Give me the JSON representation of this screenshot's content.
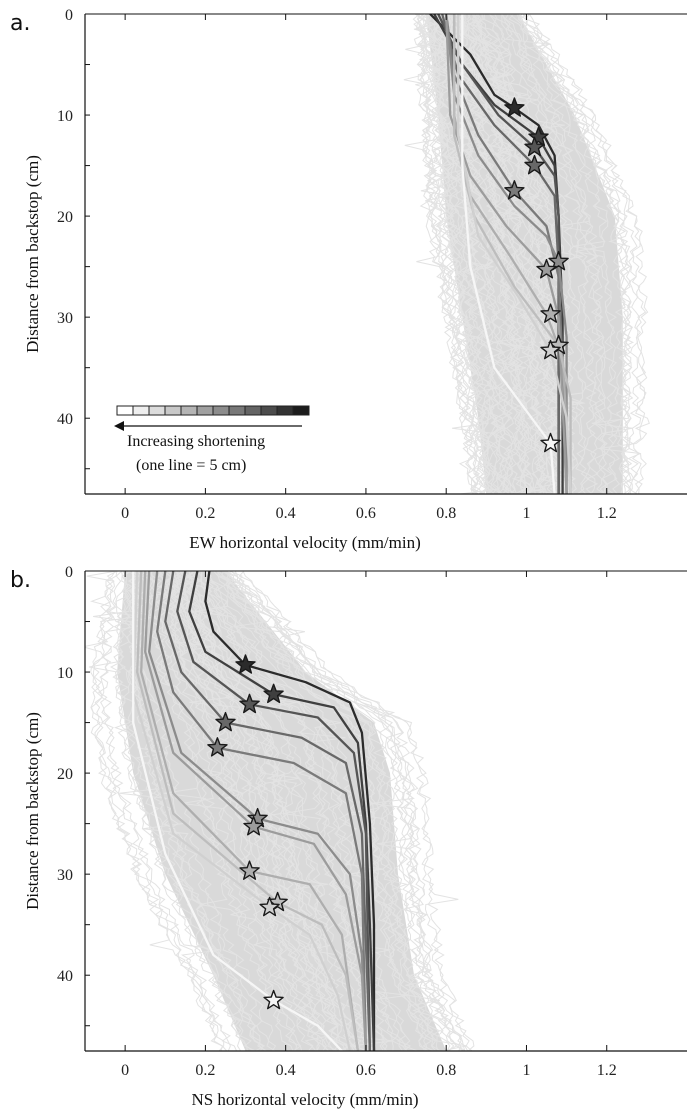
{
  "chart_data": [
    {
      "type": "line",
      "panel_label": "a.",
      "xlabel": "EW horizontal velocity (mm/min)",
      "ylabel": "Distance from backstop (cm)",
      "xlim": [
        -0.1,
        1.4
      ],
      "ylim": [
        0,
        47.5
      ],
      "y_inverted": true,
      "x_ticks": [
        0,
        0.2,
        0.4,
        0.6,
        0.8,
        1,
        1.2
      ],
      "x_tick_labels": [
        "0",
        "0.2",
        "0.4",
        "0.6",
        "0.8",
        "1",
        "1.2"
      ],
      "y_ticks": [
        0,
        10,
        20,
        30,
        40
      ],
      "y_tick_labels": [
        "0",
        "10",
        "20",
        "30",
        "40"
      ],
      "background_band": {
        "color": "#d9d9d9",
        "left_x": [
          [
            0,
            0.75
          ],
          [
            10,
            0.78
          ],
          [
            20,
            0.8
          ],
          [
            30,
            0.84
          ],
          [
            40,
            0.88
          ],
          [
            47.5,
            0.9
          ]
        ],
        "right_x": [
          [
            0,
            0.98
          ],
          [
            10,
            1.12
          ],
          [
            20,
            1.22
          ],
          [
            30,
            1.24
          ],
          [
            40,
            1.24
          ],
          [
            47.5,
            1.24
          ]
        ]
      },
      "series": [
        {
          "color": "#2b2b2b",
          "points": [
            [
              0.76,
              0
            ],
            [
              0.86,
              4
            ],
            [
              0.92,
              8
            ],
            [
              0.97,
              9.3
            ],
            [
              1.03,
              11
            ],
            [
              1.07,
              14
            ],
            [
              1.08,
              20
            ],
            [
              1.08,
              30
            ],
            [
              1.08,
              40
            ],
            [
              1.08,
              47.5
            ]
          ],
          "star": [
            0.97,
            9.3
          ]
        },
        {
          "color": "#3f3f3f",
          "points": [
            [
              0.77,
              0
            ],
            [
              0.84,
              5
            ],
            [
              0.92,
              9
            ],
            [
              1.03,
              12.2
            ],
            [
              1.07,
              15
            ],
            [
              1.08,
              20
            ],
            [
              1.09,
              30
            ],
            [
              1.09,
              40
            ],
            [
              1.09,
              47.5
            ]
          ],
          "star": [
            1.03,
            12.2
          ]
        },
        {
          "color": "#555555",
          "points": [
            [
              0.78,
              0
            ],
            [
              0.84,
              5
            ],
            [
              0.93,
              10
            ],
            [
              1.02,
              13.2
            ],
            [
              1.07,
              16
            ],
            [
              1.08,
              20
            ],
            [
              1.08,
              30
            ],
            [
              1.08,
              40
            ],
            [
              1.08,
              47.5
            ]
          ],
          "star": [
            1.02,
            13.2
          ]
        },
        {
          "color": "#686868",
          "points": [
            [
              0.79,
              0
            ],
            [
              0.83,
              6
            ],
            [
              0.92,
              11
            ],
            [
              1.02,
              15
            ],
            [
              1.07,
              18
            ],
            [
              1.08,
              25
            ],
            [
              1.08,
              35
            ],
            [
              1.08,
              47.5
            ]
          ],
          "star": [
            1.02,
            15
          ]
        },
        {
          "color": "#7a7a7a",
          "points": [
            [
              0.8,
              0
            ],
            [
              0.82,
              6
            ],
            [
              0.88,
              12
            ],
            [
              0.97,
              17.5
            ],
            [
              1.05,
              21
            ],
            [
              1.08,
              26
            ],
            [
              1.09,
              35
            ],
            [
              1.1,
              47.5
            ]
          ],
          "star": [
            0.97,
            17.5
          ]
        },
        {
          "color": "#8c8c8c",
          "points": [
            [
              0.8,
              0
            ],
            [
              0.82,
              8
            ],
            [
              0.88,
              14
            ],
            [
              0.97,
              19
            ],
            [
              1.05,
              22
            ],
            [
              1.08,
              24.5
            ],
            [
              1.1,
              32
            ],
            [
              1.1,
              47.5
            ]
          ],
          "star": [
            1.08,
            24.5
          ]
        },
        {
          "color": "#9c9c9c",
          "points": [
            [
              0.8,
              0
            ],
            [
              0.81,
              10
            ],
            [
              0.86,
              16
            ],
            [
              0.95,
              21
            ],
            [
              1.05,
              25.3
            ],
            [
              1.08,
              30
            ],
            [
              1.1,
              47.5
            ]
          ],
          "star": [
            1.05,
            25.3
          ]
        },
        {
          "color": "#aeaeae",
          "points": [
            [
              0.82,
              0
            ],
            [
              0.82,
              10
            ],
            [
              0.86,
              18
            ],
            [
              0.96,
              24
            ],
            [
              1.05,
              29.7
            ],
            [
              1.09,
              34
            ],
            [
              1.11,
              47.5
            ]
          ],
          "star": [
            1.06,
            29.7
          ]
        },
        {
          "color": "#bdbdbd",
          "points": [
            [
              0.82,
              0
            ],
            [
              0.82,
              12
            ],
            [
              0.87,
              20
            ],
            [
              0.97,
              27
            ],
            [
              1.08,
              32.8
            ],
            [
              1.11,
              38
            ],
            [
              1.11,
              47.5
            ]
          ],
          "star": [
            1.08,
            32.8
          ]
        },
        {
          "color": "#d0d0d0",
          "points": [
            [
              0.83,
              0
            ],
            [
              0.83,
              12
            ],
            [
              0.88,
              22
            ],
            [
              0.98,
              28
            ],
            [
              1.06,
              33.3
            ],
            [
              1.1,
              40
            ],
            [
              1.11,
              47.5
            ]
          ],
          "star": [
            1.06,
            33.3
          ]
        },
        {
          "color": "#f6f6f6",
          "points": [
            [
              0.84,
              0
            ],
            [
              0.84,
              15
            ],
            [
              0.86,
              25
            ],
            [
              0.92,
              35
            ],
            [
              1.06,
              42.5
            ],
            [
              1.07,
              47.5
            ]
          ],
          "star": [
            1.06,
            42.5
          ]
        }
      ],
      "legend": {
        "colors": [
          "#ffffff",
          "#eeeeee",
          "#dcdcdc",
          "#c8c8c8",
          "#b4b4b4",
          "#a0a0a0",
          "#8c8c8c",
          "#787878",
          "#646464",
          "#4c4c4c",
          "#333333",
          "#1c1c1c"
        ],
        "label_line1": "Increasing shortening",
        "label_line2": "(one line = 5 cm)"
      }
    },
    {
      "type": "line",
      "panel_label": "b.",
      "xlabel": "NS horizontal velocity (mm/min)",
      "ylabel": "Distance from backstop (cm)",
      "xlim": [
        -0.1,
        1.4
      ],
      "ylim": [
        0,
        47.5
      ],
      "y_inverted": true,
      "x_ticks": [
        0,
        0.2,
        0.4,
        0.6,
        0.8,
        1,
        1.2
      ],
      "x_tick_labels": [
        "0",
        "0.2",
        "0.4",
        "0.6",
        "0.8",
        "1",
        "1.2"
      ],
      "y_ticks": [
        0,
        10,
        20,
        30,
        40
      ],
      "y_tick_labels": [
        "0",
        "10",
        "20",
        "30",
        "40"
      ],
      "background_band": {
        "color": "#d9d9d9",
        "left_x": [
          [
            0,
            0.0
          ],
          [
            10,
            -0.02
          ],
          [
            20,
            0.02
          ],
          [
            30,
            0.1
          ],
          [
            40,
            0.22
          ],
          [
            47.5,
            0.3
          ]
        ],
        "right_x": [
          [
            0,
            0.25
          ],
          [
            10,
            0.45
          ],
          [
            15,
            0.62
          ],
          [
            20,
            0.66
          ],
          [
            30,
            0.68
          ],
          [
            40,
            0.72
          ],
          [
            47.5,
            0.8
          ]
        ]
      },
      "series": [
        {
          "color": "#2b2b2b",
          "points": [
            [
              0.21,
              0
            ],
            [
              0.2,
              3
            ],
            [
              0.22,
              6
            ],
            [
              0.3,
              9.3
            ],
            [
              0.45,
              11
            ],
            [
              0.56,
              13
            ],
            [
              0.59,
              16
            ],
            [
              0.61,
              25
            ],
            [
              0.62,
              35
            ],
            [
              0.62,
              47.5
            ]
          ],
          "star": [
            0.3,
            9.3
          ]
        },
        {
          "color": "#3f3f3f",
          "points": [
            [
              0.18,
              0
            ],
            [
              0.16,
              4
            ],
            [
              0.2,
              8
            ],
            [
              0.37,
              12.2
            ],
            [
              0.52,
              13.5
            ],
            [
              0.58,
              17
            ],
            [
              0.6,
              25
            ],
            [
              0.61,
              35
            ],
            [
              0.62,
              47.5
            ]
          ],
          "star": [
            0.37,
            12.2
          ]
        },
        {
          "color": "#555555",
          "points": [
            [
              0.15,
              0
            ],
            [
              0.13,
              4
            ],
            [
              0.17,
              9
            ],
            [
              0.31,
              13.2
            ],
            [
              0.48,
              14.5
            ],
            [
              0.57,
              18
            ],
            [
              0.6,
              26
            ],
            [
              0.61,
              47.5
            ]
          ],
          "star": [
            0.31,
            13.2
          ]
        },
        {
          "color": "#686868",
          "points": [
            [
              0.12,
              0
            ],
            [
              0.1,
              5
            ],
            [
              0.14,
              10
            ],
            [
              0.25,
              15
            ],
            [
              0.44,
              16.5
            ],
            [
              0.55,
              19
            ],
            [
              0.59,
              26
            ],
            [
              0.61,
              47.5
            ]
          ],
          "star": [
            0.25,
            15
          ]
        },
        {
          "color": "#7a7a7a",
          "points": [
            [
              0.1,
              0
            ],
            [
              0.08,
              6
            ],
            [
              0.12,
              12
            ],
            [
              0.23,
              17.5
            ],
            [
              0.42,
              19
            ],
            [
              0.55,
              22
            ],
            [
              0.59,
              30
            ],
            [
              0.6,
              47.5
            ]
          ],
          "star": [
            0.23,
            17.5
          ]
        },
        {
          "color": "#8c8c8c",
          "points": [
            [
              0.08,
              0
            ],
            [
              0.06,
              8
            ],
            [
              0.14,
              18
            ],
            [
              0.33,
              24.5
            ],
            [
              0.48,
              26
            ],
            [
              0.56,
              30
            ],
            [
              0.59,
              38
            ],
            [
              0.6,
              47.5
            ]
          ],
          "star": [
            0.33,
            24.5
          ]
        },
        {
          "color": "#9c9c9c",
          "points": [
            [
              0.06,
              0
            ],
            [
              0.05,
              8
            ],
            [
              0.12,
              18
            ],
            [
              0.32,
              25.3
            ],
            [
              0.47,
              27
            ],
            [
              0.55,
              32
            ],
            [
              0.59,
              40
            ],
            [
              0.6,
              47.5
            ]
          ],
          "star": [
            0.32,
            25.3
          ]
        },
        {
          "color": "#aeaeae",
          "points": [
            [
              0.05,
              0
            ],
            [
              0.04,
              10
            ],
            [
              0.12,
              22
            ],
            [
              0.31,
              29.7
            ],
            [
              0.46,
              31
            ],
            [
              0.54,
              36
            ],
            [
              0.58,
              47.5
            ]
          ],
          "star": [
            0.31,
            29.7
          ]
        },
        {
          "color": "#bdbdbd",
          "points": [
            [
              0.04,
              0
            ],
            [
              0.03,
              10
            ],
            [
              0.12,
              24
            ],
            [
              0.38,
              32.8
            ],
            [
              0.49,
              35
            ],
            [
              0.55,
              40
            ],
            [
              0.58,
              47.5
            ]
          ],
          "star": [
            0.38,
            32.8
          ]
        },
        {
          "color": "#d0d0d0",
          "points": [
            [
              0.03,
              0
            ],
            [
              0.02,
              12
            ],
            [
              0.12,
              26
            ],
            [
              0.36,
              33.3
            ],
            [
              0.46,
              36
            ],
            [
              0.53,
              42
            ],
            [
              0.56,
              47.5
            ]
          ],
          "star": [
            0.36,
            33.3
          ]
        },
        {
          "color": "#f6f6f6",
          "points": [
            [
              0.02,
              0
            ],
            [
              0.02,
              15
            ],
            [
              0.1,
              28
            ],
            [
              0.22,
              38
            ],
            [
              0.37,
              42.5
            ],
            [
              0.48,
              45
            ],
            [
              0.54,
              47.5
            ]
          ],
          "star": [
            0.37,
            42.5
          ]
        }
      ]
    }
  ]
}
